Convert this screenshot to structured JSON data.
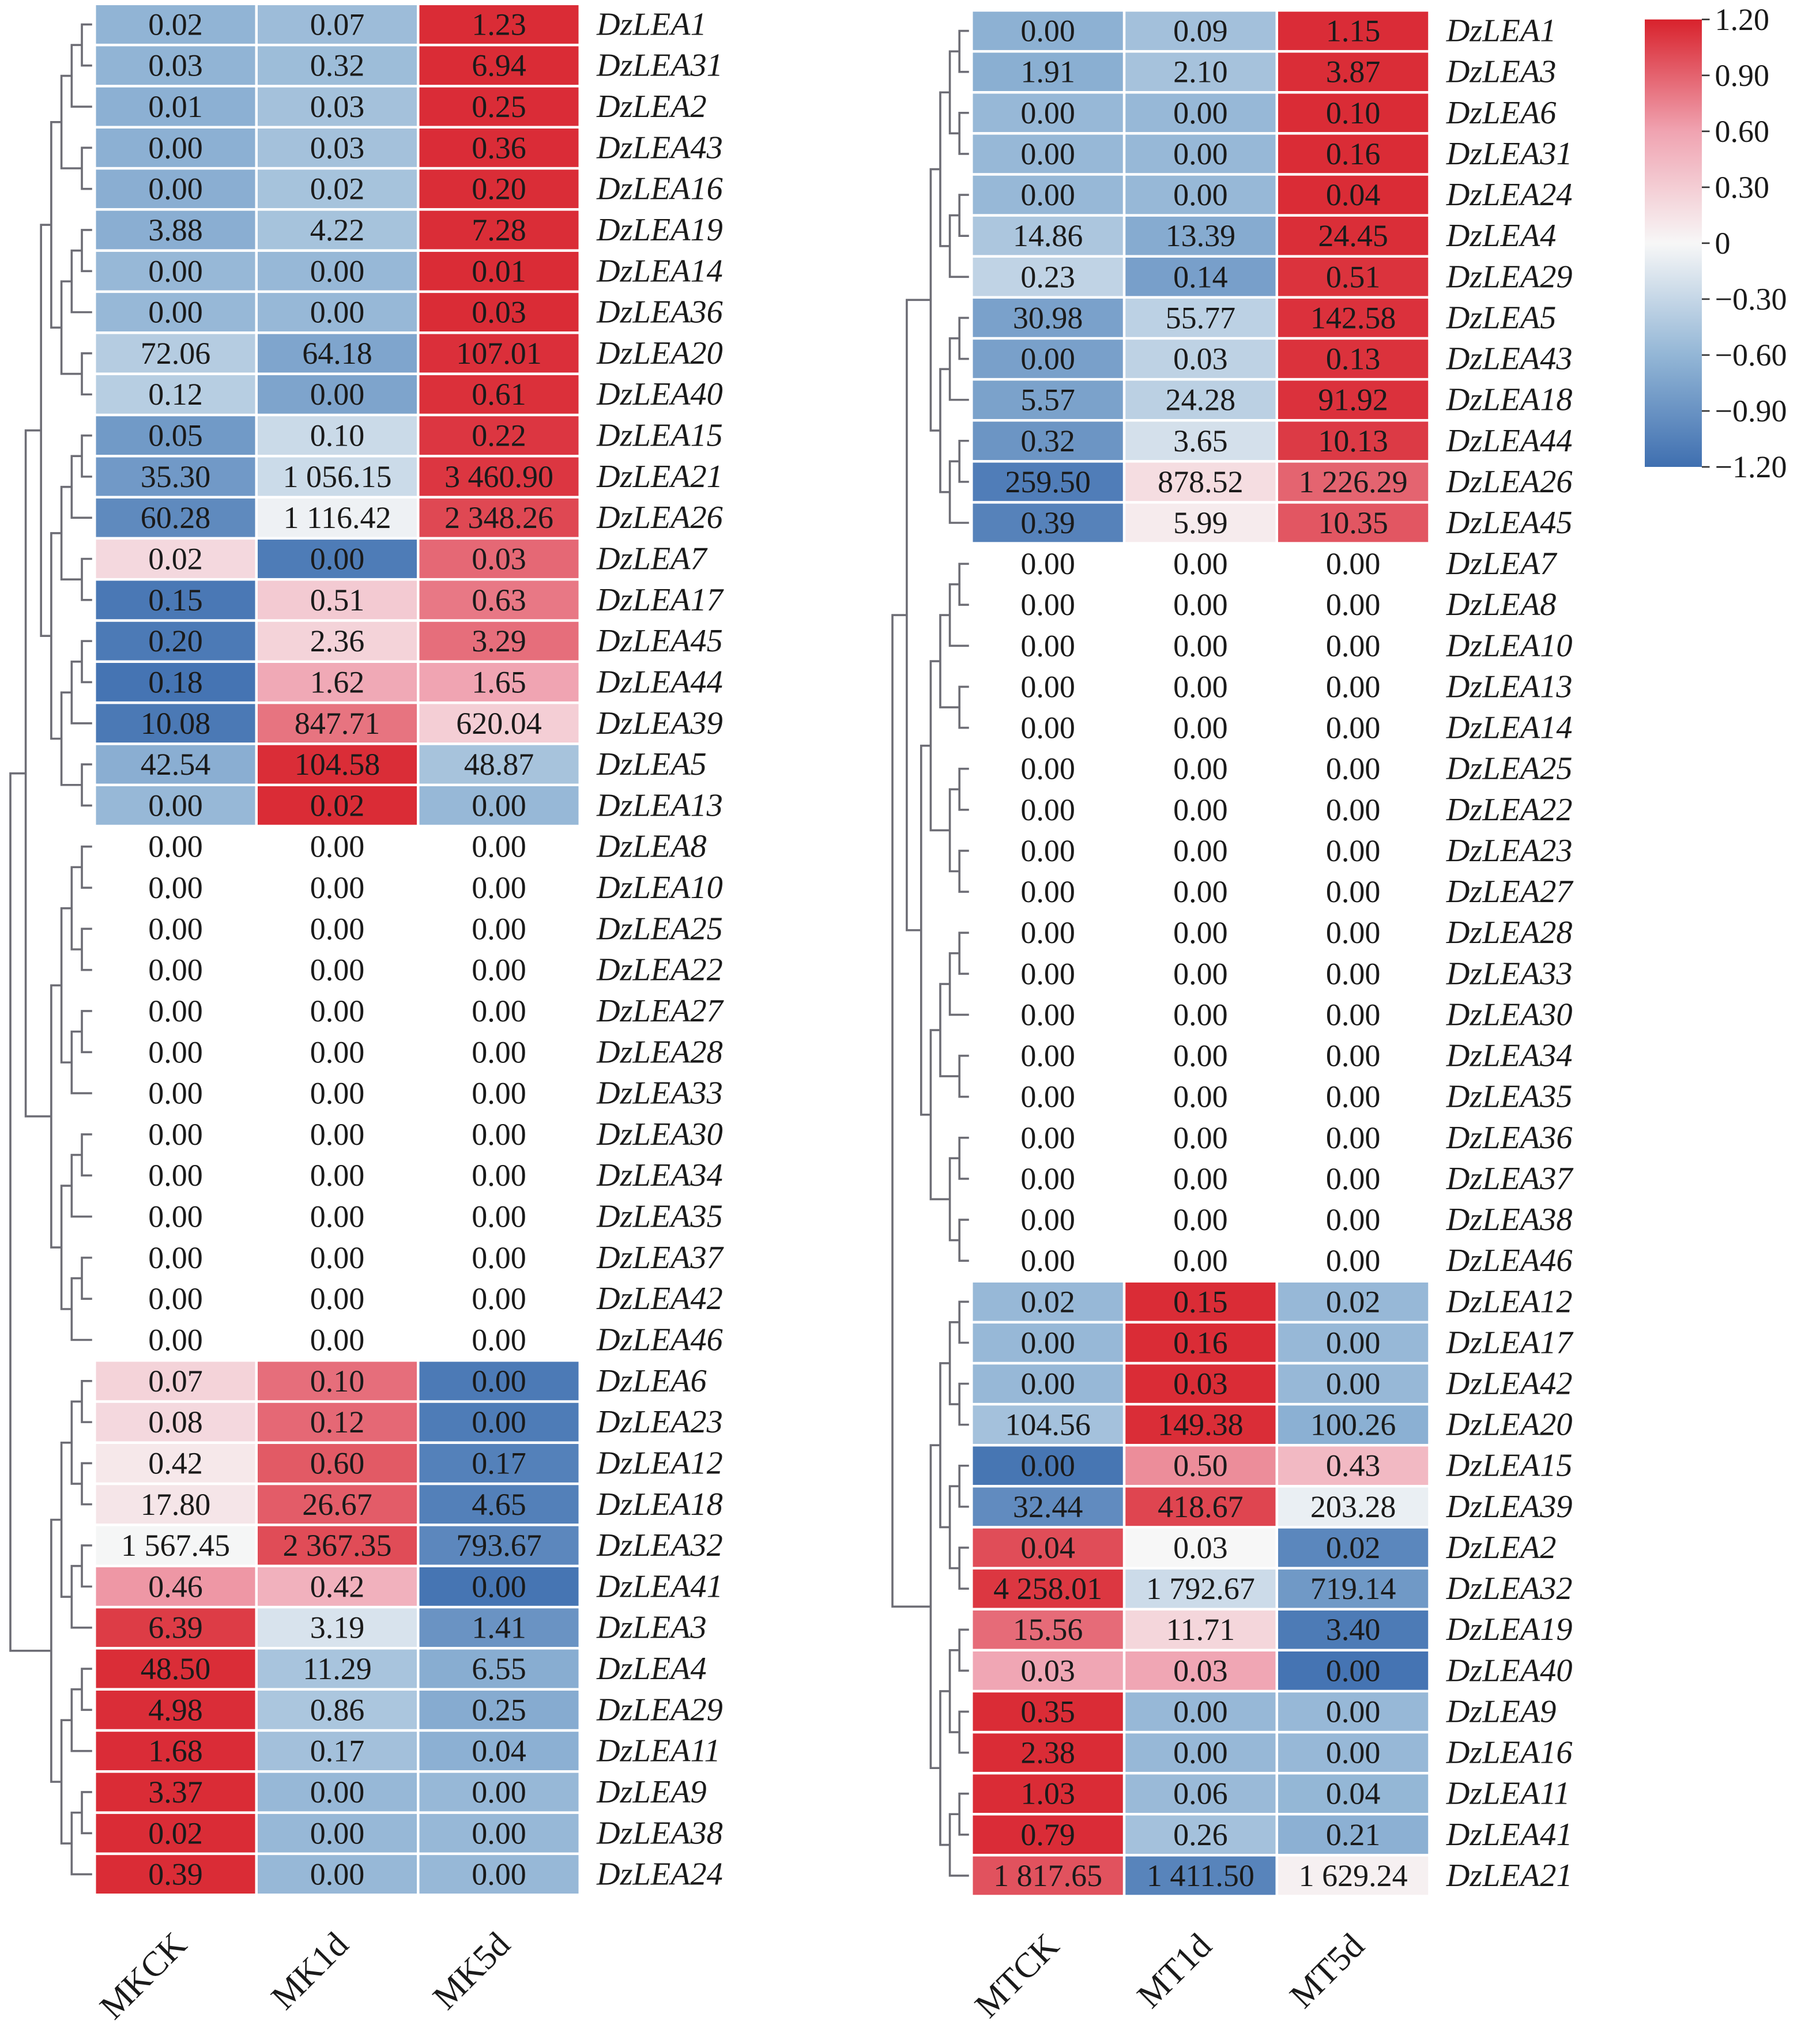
{
  "chart_data": [
    {
      "type": "heatmap",
      "title": "",
      "columns": [
        "MKCK",
        "MK1d",
        "MK5d"
      ],
      "rows": [
        {
          "gene": "DzLEA1",
          "values": [
            "0.02",
            "0.07",
            "1.23"
          ]
        },
        {
          "gene": "DzLEA31",
          "values": [
            "0.03",
            "0.32",
            "6.94"
          ]
        },
        {
          "gene": "DzLEA2",
          "values": [
            "0.01",
            "0.03",
            "0.25"
          ]
        },
        {
          "gene": "DzLEA43",
          "values": [
            "0.00",
            "0.03",
            "0.36"
          ]
        },
        {
          "gene": "DzLEA16",
          "values": [
            "0.00",
            "0.02",
            "0.20"
          ]
        },
        {
          "gene": "DzLEA19",
          "values": [
            "3.88",
            "4.22",
            "7.28"
          ]
        },
        {
          "gene": "DzLEA14",
          "values": [
            "0.00",
            "0.00",
            "0.01"
          ]
        },
        {
          "gene": "DzLEA36",
          "values": [
            "0.00",
            "0.00",
            "0.03"
          ]
        },
        {
          "gene": "DzLEA20",
          "values": [
            "72.06",
            "64.18",
            "107.01"
          ]
        },
        {
          "gene": "DzLEA40",
          "values": [
            "0.12",
            "0.00",
            "0.61"
          ]
        },
        {
          "gene": "DzLEA15",
          "values": [
            "0.05",
            "0.10",
            "0.22"
          ]
        },
        {
          "gene": "DzLEA21",
          "values": [
            "35.30",
            "1 056.15",
            "3 460.90"
          ]
        },
        {
          "gene": "DzLEA26",
          "values": [
            "60.28",
            "1 116.42",
            "2 348.26"
          ]
        },
        {
          "gene": "DzLEA7",
          "values": [
            "0.02",
            "0.00",
            "0.03"
          ]
        },
        {
          "gene": "DzLEA17",
          "values": [
            "0.15",
            "0.51",
            "0.63"
          ]
        },
        {
          "gene": "DzLEA45",
          "values": [
            "0.20",
            "2.36",
            "3.29"
          ]
        },
        {
          "gene": "DzLEA44",
          "values": [
            "0.18",
            "1.62",
            "1.65"
          ]
        },
        {
          "gene": "DzLEA39",
          "values": [
            "10.08",
            "847.71",
            "620.04"
          ]
        },
        {
          "gene": "DzLEA5",
          "values": [
            "42.54",
            "104.58",
            "48.87"
          ]
        },
        {
          "gene": "DzLEA13",
          "values": [
            "0.00",
            "0.02",
            "0.00"
          ]
        },
        {
          "gene": "DzLEA8",
          "values": [
            "0.00",
            "0.00",
            "0.00"
          ]
        },
        {
          "gene": "DzLEA10",
          "values": [
            "0.00",
            "0.00",
            "0.00"
          ]
        },
        {
          "gene": "DzLEA25",
          "values": [
            "0.00",
            "0.00",
            "0.00"
          ]
        },
        {
          "gene": "DzLEA22",
          "values": [
            "0.00",
            "0.00",
            "0.00"
          ]
        },
        {
          "gene": "DzLEA27",
          "values": [
            "0.00",
            "0.00",
            "0.00"
          ]
        },
        {
          "gene": "DzLEA28",
          "values": [
            "0.00",
            "0.00",
            "0.00"
          ]
        },
        {
          "gene": "DzLEA33",
          "values": [
            "0.00",
            "0.00",
            "0.00"
          ]
        },
        {
          "gene": "DzLEA30",
          "values": [
            "0.00",
            "0.00",
            "0.00"
          ]
        },
        {
          "gene": "DzLEA34",
          "values": [
            "0.00",
            "0.00",
            "0.00"
          ]
        },
        {
          "gene": "DzLEA35",
          "values": [
            "0.00",
            "0.00",
            "0.00"
          ]
        },
        {
          "gene": "DzLEA37",
          "values": [
            "0.00",
            "0.00",
            "0.00"
          ]
        },
        {
          "gene": "DzLEA42",
          "values": [
            "0.00",
            "0.00",
            "0.00"
          ]
        },
        {
          "gene": "DzLEA46",
          "values": [
            "0.00",
            "0.00",
            "0.00"
          ]
        },
        {
          "gene": "DzLEA6",
          "values": [
            "0.07",
            "0.10",
            "0.00"
          ]
        },
        {
          "gene": "DzLEA23",
          "values": [
            "0.08",
            "0.12",
            "0.00"
          ]
        },
        {
          "gene": "DzLEA12",
          "values": [
            "0.42",
            "0.60",
            "0.17"
          ]
        },
        {
          "gene": "DzLEA18",
          "values": [
            "17.80",
            "26.67",
            "4.65"
          ]
        },
        {
          "gene": "DzLEA32",
          "values": [
            "1 567.45",
            "2 367.35",
            "793.67"
          ]
        },
        {
          "gene": "DzLEA41",
          "values": [
            "0.46",
            "0.42",
            "0.00"
          ]
        },
        {
          "gene": "DzLEA3",
          "values": [
            "6.39",
            "3.19",
            "1.41"
          ]
        },
        {
          "gene": "DzLEA4",
          "values": [
            "48.50",
            "11.29",
            "6.55"
          ]
        },
        {
          "gene": "DzLEA29",
          "values": [
            "4.98",
            "0.86",
            "0.25"
          ]
        },
        {
          "gene": "DzLEA11",
          "values": [
            "1.68",
            "0.17",
            "0.04"
          ]
        },
        {
          "gene": "DzLEA9",
          "values": [
            "3.37",
            "0.00",
            "0.00"
          ]
        },
        {
          "gene": "DzLEA38",
          "values": [
            "0.02",
            "0.00",
            "0.00"
          ]
        },
        {
          "gene": "DzLEA24",
          "values": [
            "0.39",
            "0.00",
            "0.00"
          ]
        }
      ],
      "clusters": [
        20,
        13,
        13
      ]
    },
    {
      "type": "heatmap",
      "title": "",
      "columns": [
        "MTCK",
        "MT1d",
        "MT5d"
      ],
      "rows": [
        {
          "gene": "DzLEA1",
          "values": [
            "0.00",
            "0.09",
            "1.15"
          ]
        },
        {
          "gene": "DzLEA3",
          "values": [
            "1.91",
            "2.10",
            "3.87"
          ]
        },
        {
          "gene": "DzLEA6",
          "values": [
            "0.00",
            "0.00",
            "0.10"
          ]
        },
        {
          "gene": "DzLEA31",
          "values": [
            "0.00",
            "0.00",
            "0.16"
          ]
        },
        {
          "gene": "DzLEA24",
          "values": [
            "0.00",
            "0.00",
            "0.04"
          ]
        },
        {
          "gene": "DzLEA4",
          "values": [
            "14.86",
            "13.39",
            "24.45"
          ]
        },
        {
          "gene": "DzLEA29",
          "values": [
            "0.23",
            "0.14",
            "0.51"
          ]
        },
        {
          "gene": "DzLEA5",
          "values": [
            "30.98",
            "55.77",
            "142.58"
          ]
        },
        {
          "gene": "DzLEA43",
          "values": [
            "0.00",
            "0.03",
            "0.13"
          ]
        },
        {
          "gene": "DzLEA18",
          "values": [
            "5.57",
            "24.28",
            "91.92"
          ]
        },
        {
          "gene": "DzLEA44",
          "values": [
            "0.32",
            "3.65",
            "10.13"
          ]
        },
        {
          "gene": "DzLEA26",
          "values": [
            "259.50",
            "878.52",
            "1 226.29"
          ]
        },
        {
          "gene": "DzLEA45",
          "values": [
            "0.39",
            "5.99",
            "10.35"
          ]
        },
        {
          "gene": "DzLEA7",
          "values": [
            "0.00",
            "0.00",
            "0.00"
          ]
        },
        {
          "gene": "DzLEA8",
          "values": [
            "0.00",
            "0.00",
            "0.00"
          ]
        },
        {
          "gene": "DzLEA10",
          "values": [
            "0.00",
            "0.00",
            "0.00"
          ]
        },
        {
          "gene": "DzLEA13",
          "values": [
            "0.00",
            "0.00",
            "0.00"
          ]
        },
        {
          "gene": "DzLEA14",
          "values": [
            "0.00",
            "0.00",
            "0.00"
          ]
        },
        {
          "gene": "DzLEA25",
          "values": [
            "0.00",
            "0.00",
            "0.00"
          ]
        },
        {
          "gene": "DzLEA22",
          "values": [
            "0.00",
            "0.00",
            "0.00"
          ]
        },
        {
          "gene": "DzLEA23",
          "values": [
            "0.00",
            "0.00",
            "0.00"
          ]
        },
        {
          "gene": "DzLEA27",
          "values": [
            "0.00",
            "0.00",
            "0.00"
          ]
        },
        {
          "gene": "DzLEA28",
          "values": [
            "0.00",
            "0.00",
            "0.00"
          ]
        },
        {
          "gene": "DzLEA33",
          "values": [
            "0.00",
            "0.00",
            "0.00"
          ]
        },
        {
          "gene": "DzLEA30",
          "values": [
            "0.00",
            "0.00",
            "0.00"
          ]
        },
        {
          "gene": "DzLEA34",
          "values": [
            "0.00",
            "0.00",
            "0.00"
          ]
        },
        {
          "gene": "DzLEA35",
          "values": [
            "0.00",
            "0.00",
            "0.00"
          ]
        },
        {
          "gene": "DzLEA36",
          "values": [
            "0.00",
            "0.00",
            "0.00"
          ]
        },
        {
          "gene": "DzLEA37",
          "values": [
            "0.00",
            "0.00",
            "0.00"
          ]
        },
        {
          "gene": "DzLEA38",
          "values": [
            "0.00",
            "0.00",
            "0.00"
          ]
        },
        {
          "gene": "DzLEA46",
          "values": [
            "0.00",
            "0.00",
            "0.00"
          ]
        },
        {
          "gene": "DzLEA12",
          "values": [
            "0.02",
            "0.15",
            "0.02"
          ]
        },
        {
          "gene": "DzLEA17",
          "values": [
            "0.00",
            "0.16",
            "0.00"
          ]
        },
        {
          "gene": "DzLEA42",
          "values": [
            "0.00",
            "0.03",
            "0.00"
          ]
        },
        {
          "gene": "DzLEA20",
          "values": [
            "104.56",
            "149.38",
            "100.26"
          ]
        },
        {
          "gene": "DzLEA15",
          "values": [
            "0.00",
            "0.50",
            "0.43"
          ]
        },
        {
          "gene": "DzLEA39",
          "values": [
            "32.44",
            "418.67",
            "203.28"
          ]
        },
        {
          "gene": "DzLEA2",
          "values": [
            "0.04",
            "0.03",
            "0.02"
          ]
        },
        {
          "gene": "DzLEA32",
          "values": [
            "4 258.01",
            "1 792.67",
            "719.14"
          ]
        },
        {
          "gene": "DzLEA19",
          "values": [
            "15.56",
            "11.71",
            "3.40"
          ]
        },
        {
          "gene": "DzLEA40",
          "values": [
            "0.03",
            "0.03",
            "0.00"
          ]
        },
        {
          "gene": "DzLEA9",
          "values": [
            "0.35",
            "0.00",
            "0.00"
          ]
        },
        {
          "gene": "DzLEA16",
          "values": [
            "2.38",
            "0.00",
            "0.00"
          ]
        },
        {
          "gene": "DzLEA11",
          "values": [
            "1.03",
            "0.06",
            "0.04"
          ]
        },
        {
          "gene": "DzLEA41",
          "values": [
            "0.79",
            "0.26",
            "0.21"
          ]
        },
        {
          "gene": "DzLEA21",
          "values": [
            "1 817.65",
            "1 411.50",
            "1 629.24"
          ]
        }
      ],
      "clusters": [
        13,
        18,
        15
      ]
    }
  ],
  "colorbar": {
    "range": [
      -1.2,
      1.2
    ],
    "ticks": [
      "1.20",
      "0.90",
      "0.60",
      "0.30",
      "0",
      "−0.30",
      "−0.60",
      "−0.90",
      "−1.20"
    ],
    "colors": {
      "low": "#3f6fb0",
      "mid_low": "#93b6d6",
      "mid": "#f7f7f7",
      "mid_high": "#f0a3b1",
      "high": "#d8222c"
    }
  },
  "dendrogram_color": "#6d6d75"
}
